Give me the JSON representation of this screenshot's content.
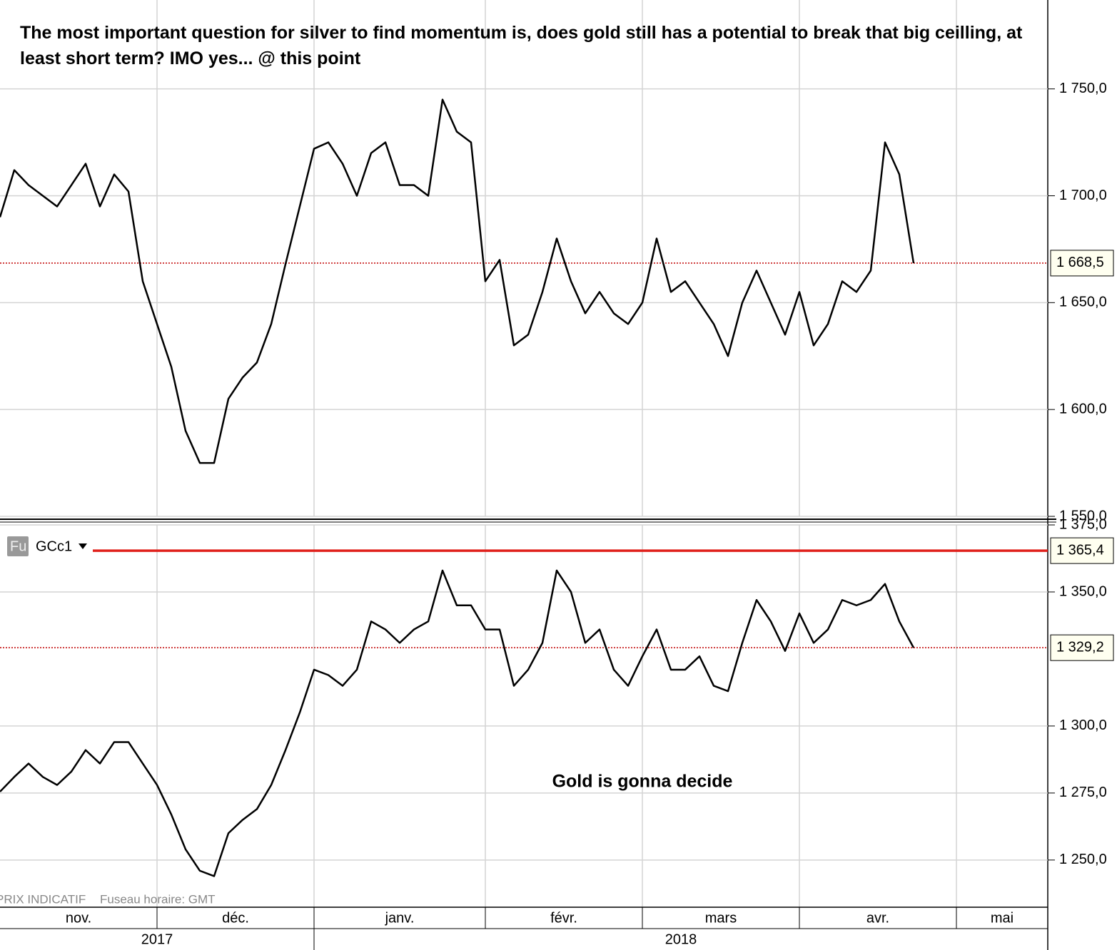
{
  "chart_data": [
    {
      "type": "line",
      "annotation": "The most important question for silver to find momentum is, does gold still has a potential to break that big ceilling, at least short term? IMO yes... @ this point",
      "color": "#000000",
      "grid": true,
      "ylim": [
        1550,
        1791.6
      ],
      "yticks": [
        {
          "value": 1550,
          "label": "1 550,0"
        },
        {
          "value": 1600,
          "label": "1 600,0"
        },
        {
          "value": 1650,
          "label": "1 650,0"
        },
        {
          "value": 1700,
          "label": "1 700,0"
        },
        {
          "value": 1750,
          "label": "1 750,0"
        }
      ],
      "last_price": {
        "value": 1668.5,
        "label": "1 668,5"
      },
      "values": [
        1690,
        1712,
        1705,
        1700,
        1695,
        1705,
        1715,
        1695,
        1710,
        1702,
        1660,
        1640,
        1620,
        1590,
        1575,
        1575,
        1605,
        1615,
        1622,
        1640,
        1668,
        1695,
        1722,
        1725,
        1715,
        1700,
        1720,
        1725,
        1705,
        1705,
        1700,
        1745,
        1730,
        1725,
        1660,
        1670,
        1630,
        1635,
        1655,
        1680,
        1660,
        1645,
        1655,
        1645,
        1640,
        1650,
        1680,
        1655,
        1660,
        1650,
        1640,
        1625,
        1650,
        1665,
        1650,
        1635,
        1655,
        1630,
        1640,
        1660,
        1655,
        1665,
        1725,
        1710,
        1668.5,
        null,
        null,
        null,
        null,
        null,
        null,
        null,
        null,
        null
      ]
    },
    {
      "type": "line",
      "symbol": "GCc1",
      "badge": "Fu",
      "annotation": "Gold is gonna decide",
      "footer": [
        "PRIX INDICATIF",
        "Fuseau horaire: GMT"
      ],
      "color": "#000000",
      "grid": true,
      "ylim": [
        1232.4,
        1375
      ],
      "yticks": [
        {
          "value": 1250,
          "label": "1 250,0"
        },
        {
          "value": 1275,
          "label": "1 275,0"
        },
        {
          "value": 1300,
          "label": "1 300,0"
        },
        {
          "value": 1350,
          "label": "1 350,0"
        },
        {
          "value": 1375,
          "label": "1 375,0"
        }
      ],
      "hline": {
        "value": 1365.4,
        "label": "1 365,4",
        "color": "#e0201b"
      },
      "last_price": {
        "value": 1329.2,
        "label": "1 329,2"
      },
      "years": [
        "2017",
        "2018"
      ],
      "categories": [
        "nov.",
        null,
        null,
        null,
        null,
        null,
        null,
        null,
        null,
        null,
        null,
        "déc.",
        null,
        null,
        null,
        null,
        null,
        null,
        null,
        null,
        null,
        null,
        "janv.",
        null,
        null,
        null,
        null,
        null,
        null,
        null,
        null,
        null,
        null,
        null,
        "févr.",
        null,
        null,
        null,
        null,
        null,
        null,
        null,
        null,
        null,
        null,
        "mars",
        null,
        null,
        null,
        null,
        null,
        null,
        null,
        null,
        null,
        null,
        "avr.",
        null,
        null,
        null,
        null,
        null,
        null,
        null,
        null,
        null,
        null,
        "mai",
        null,
        null,
        null,
        null,
        null,
        null
      ],
      "values": [
        1275.5,
        1281,
        1286,
        1281,
        1278,
        1283,
        1291,
        1286,
        1294,
        1294,
        1286,
        1278,
        1267,
        1254,
        1246,
        1244,
        1260,
        1265,
        1269,
        1278,
        1291,
        1305,
        1321,
        1319,
        1315,
        1321,
        1339,
        1336,
        1331,
        1336,
        1339,
        1358,
        1345,
        1345,
        1336,
        1336,
        1315,
        1321,
        1331,
        1358,
        1350,
        1331,
        1336,
        1321,
        1315,
        1326,
        1336,
        1321,
        1321,
        1326,
        1315,
        1313,
        1331,
        1347,
        1339,
        1328,
        1342,
        1331,
        1336,
        1347,
        1345,
        1347,
        1353,
        1339,
        1329.2,
        null,
        null,
        null,
        null,
        null,
        null,
        null,
        null,
        null
      ]
    }
  ]
}
